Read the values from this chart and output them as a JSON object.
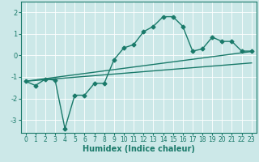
{
  "xlabel": "Humidex (Indice chaleur)",
  "ylabel": "",
  "bg_color": "#cce8e8",
  "grid_color": "#ffffff",
  "line_color": "#1a7a6a",
  "xlim": [
    -0.5,
    23.5
  ],
  "ylim": [
    -3.6,
    2.5
  ],
  "xticks": [
    0,
    1,
    2,
    3,
    4,
    5,
    6,
    7,
    8,
    9,
    10,
    11,
    12,
    13,
    14,
    15,
    16,
    17,
    18,
    19,
    20,
    21,
    22,
    23
  ],
  "yticks": [
    -3,
    -2,
    -1,
    0,
    1,
    2
  ],
  "main_x": [
    0,
    1,
    2,
    3,
    4,
    5,
    6,
    7,
    8,
    9,
    10,
    11,
    12,
    13,
    14,
    15,
    16,
    17,
    18,
    19,
    20,
    21,
    22,
    23
  ],
  "main_y": [
    -1.2,
    -1.4,
    -1.1,
    -1.15,
    -3.4,
    -1.85,
    -1.85,
    -1.3,
    -1.3,
    -0.2,
    0.35,
    0.5,
    1.1,
    1.35,
    1.8,
    1.8,
    1.35,
    0.2,
    0.3,
    0.85,
    0.65,
    0.65,
    0.2,
    0.2
  ],
  "trend1_x": [
    0,
    23
  ],
  "trend1_y": [
    -1.2,
    0.18
  ],
  "trend2_x": [
    0,
    23
  ],
  "trend2_y": [
    -1.2,
    -0.35
  ],
  "marker": "D",
  "markersize": 2.5,
  "linewidth": 1.0,
  "tick_labelsize": 5.5,
  "xlabel_fontsize": 7,
  "xlabel_bold": true
}
